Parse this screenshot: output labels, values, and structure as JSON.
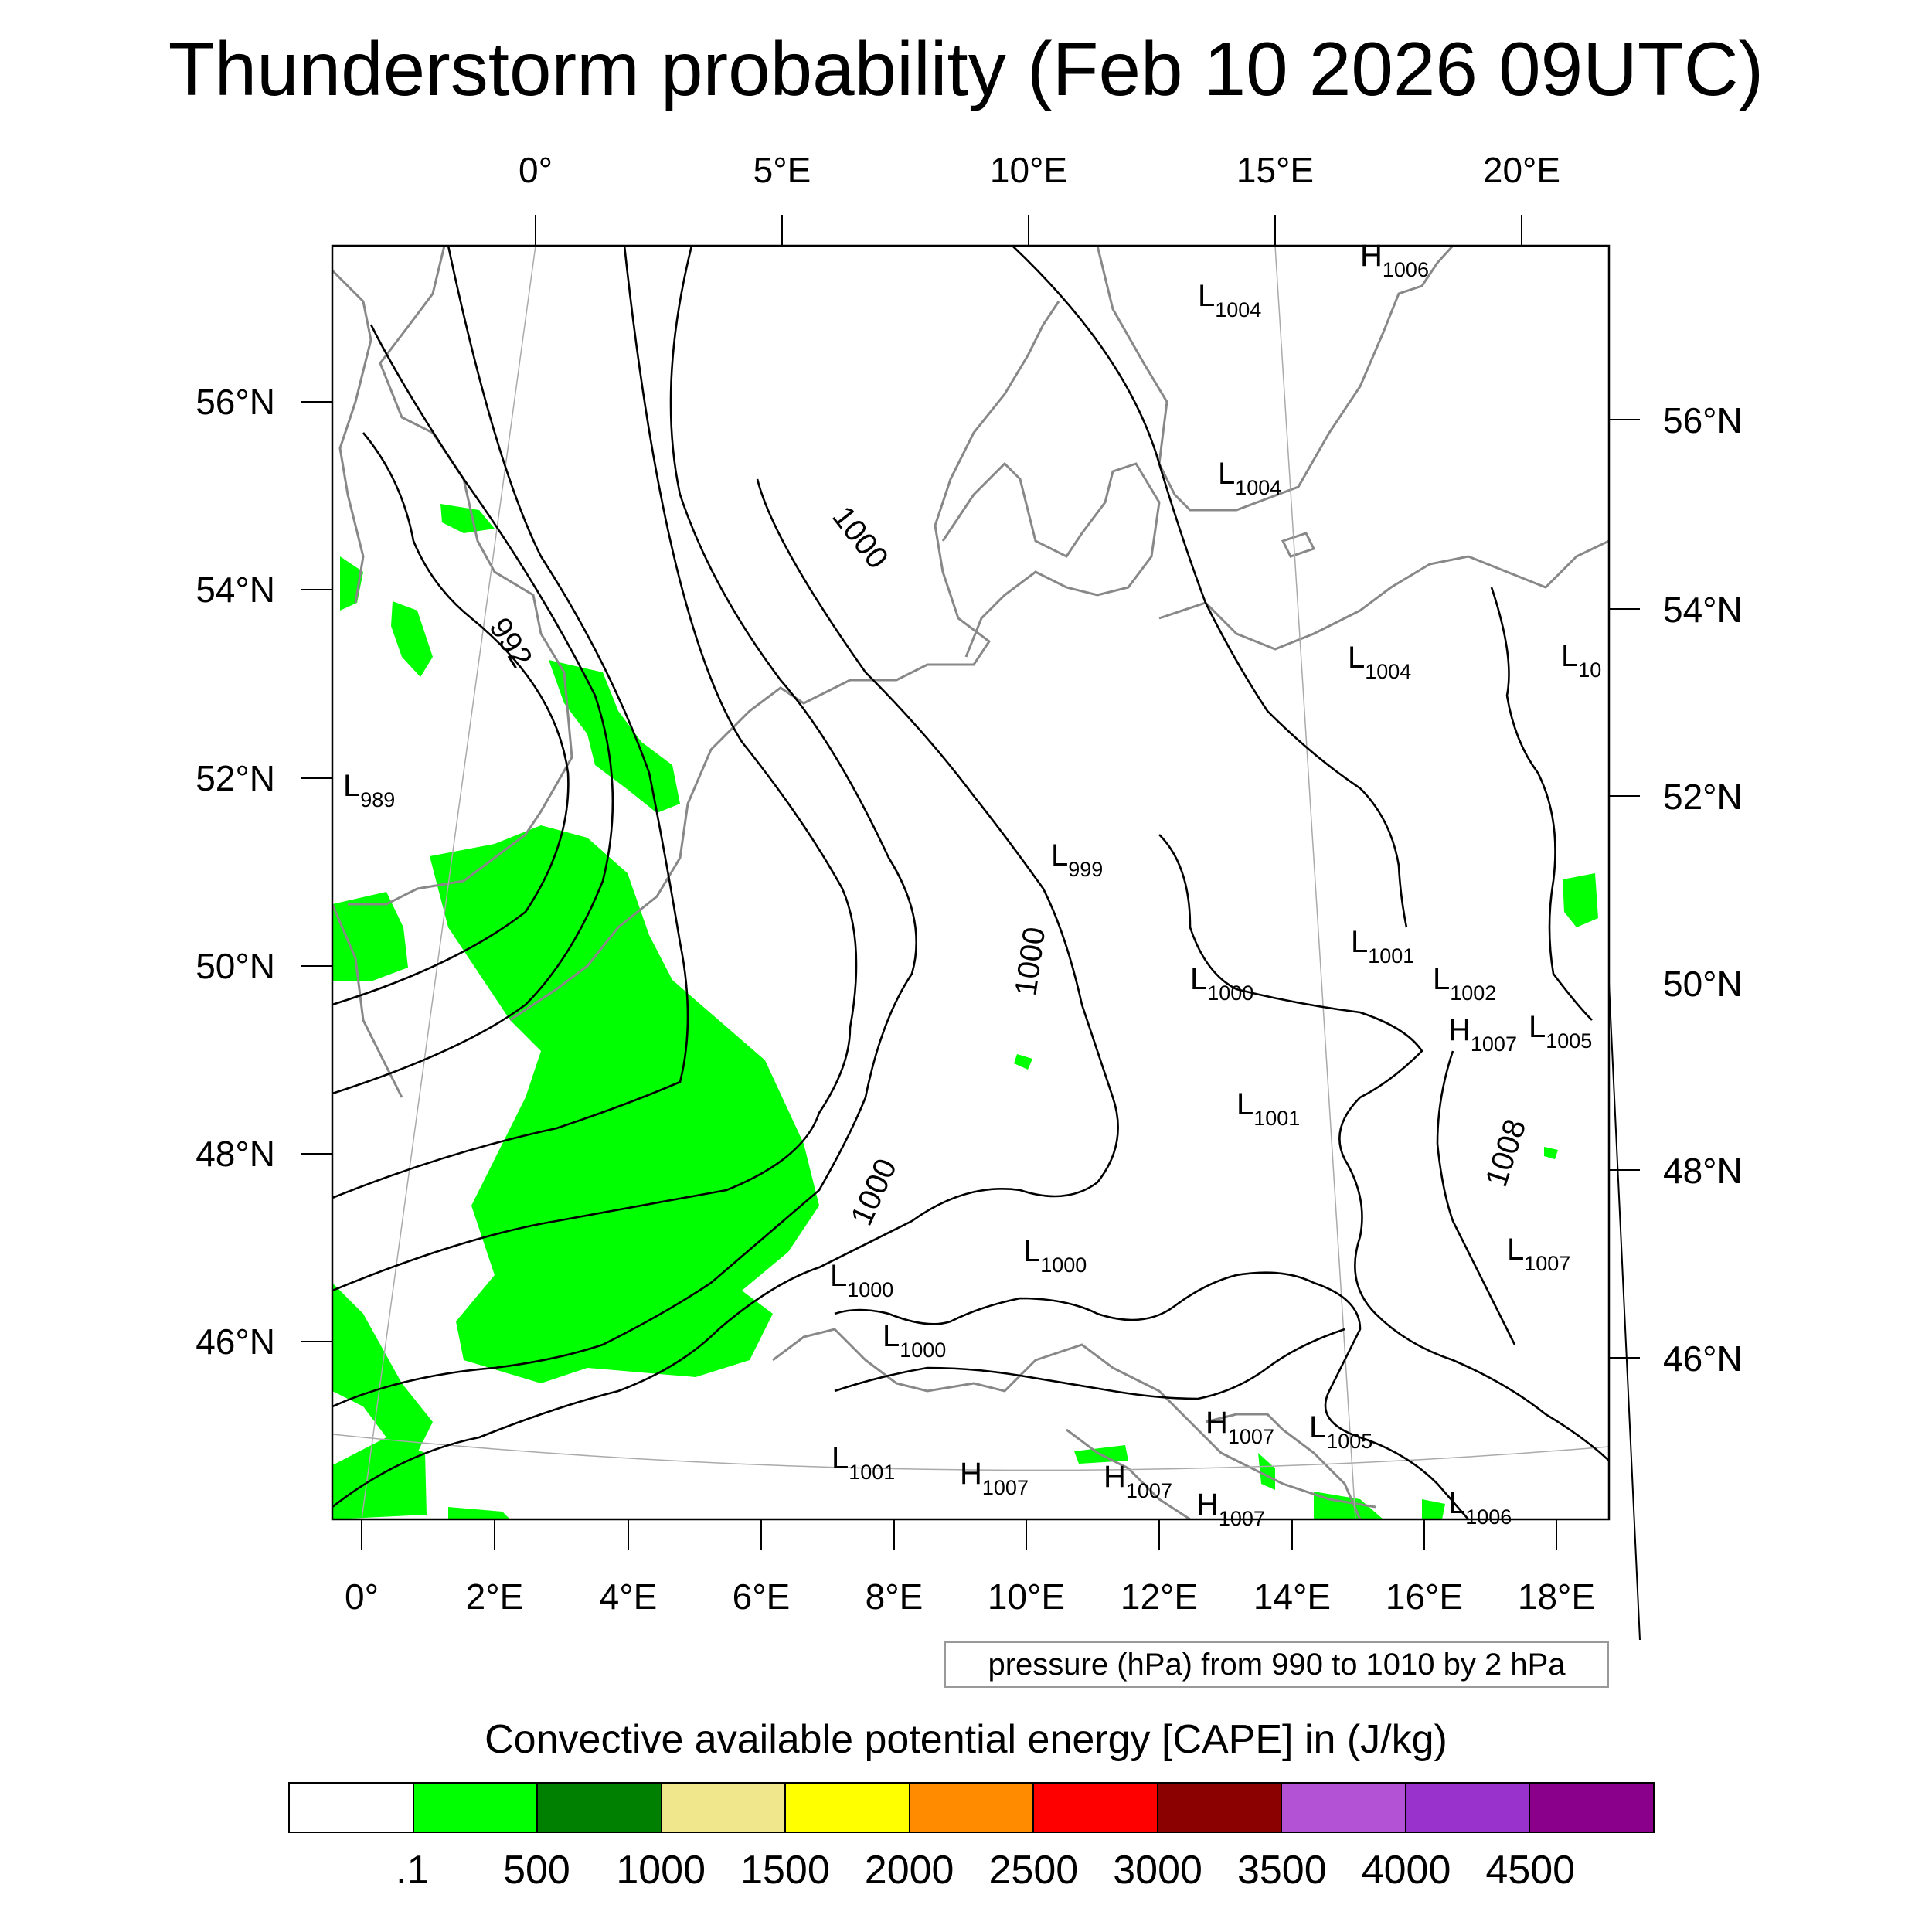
{
  "title": "Thunderstorm probability (Feb 10 2026 09UTC)",
  "lon_top": [
    "0°",
    "5°E",
    "10°E",
    "15°E",
    "20°E"
  ],
  "lon_bottom": [
    "0°",
    "2°E",
    "4°E",
    "6°E",
    "8°E",
    "10°E",
    "12°E",
    "14°E",
    "16°E",
    "18°E"
  ],
  "lat_left": [
    "56°N",
    "54°N",
    "52°N",
    "50°N",
    "48°N",
    "46°N"
  ],
  "lat_right": [
    "56°N",
    "54°N",
    "52°N",
    "50°N",
    "48°N",
    "46°N"
  ],
  "isobar_labels": [
    "992",
    "1000",
    "1000",
    "1000",
    "1008"
  ],
  "pressure_centers": [
    {
      "t": "H",
      "v": "1006"
    },
    {
      "t": "L",
      "v": "1004"
    },
    {
      "t": "L",
      "v": "1004"
    },
    {
      "t": "L",
      "v": "1004"
    },
    {
      "t": "L",
      "v": "10"
    },
    {
      "t": "L",
      "v": "989"
    },
    {
      "t": "L",
      "v": "999"
    },
    {
      "t": "L",
      "v": "1001"
    },
    {
      "t": "L",
      "v": "1000"
    },
    {
      "t": "L",
      "v": "1002"
    },
    {
      "t": "H",
      "v": "1007"
    },
    {
      "t": "L",
      "v": "1005"
    },
    {
      "t": "L",
      "v": "1001"
    },
    {
      "t": "L",
      "v": "1000"
    },
    {
      "t": "L",
      "v": "1007"
    },
    {
      "t": "L",
      "v": "1000"
    },
    {
      "t": "L",
      "v": "1000"
    },
    {
      "t": "H",
      "v": "1007"
    },
    {
      "t": "L",
      "v": "1005"
    },
    {
      "t": "L",
      "v": "1001"
    },
    {
      "t": "H",
      "v": "1007"
    },
    {
      "t": "H",
      "v": "1007"
    },
    {
      "t": "H",
      "v": "1007"
    },
    {
      "t": "L",
      "v": "1006"
    }
  ],
  "pressure_note": "pressure (hPa) from 990 to 1010 by 2 hPa",
  "colorbar": {
    "title": "Convective available potential energy [CAPE] in (J/kg)",
    "colors": [
      "#ffffff",
      "#00ff00",
      "#008000",
      "#f0e68c",
      "#ffff00",
      "#ff8c00",
      "#ff0000",
      "#8b0000",
      "#b452d6",
      "#9932cc",
      "#8b008b"
    ],
    "labels": [
      ".1",
      "500",
      "1000",
      "1500",
      "2000",
      "2500",
      "3000",
      "3500",
      "4000",
      "4500"
    ]
  },
  "legend_icons": {
    "grid": "graticule-icon"
  }
}
